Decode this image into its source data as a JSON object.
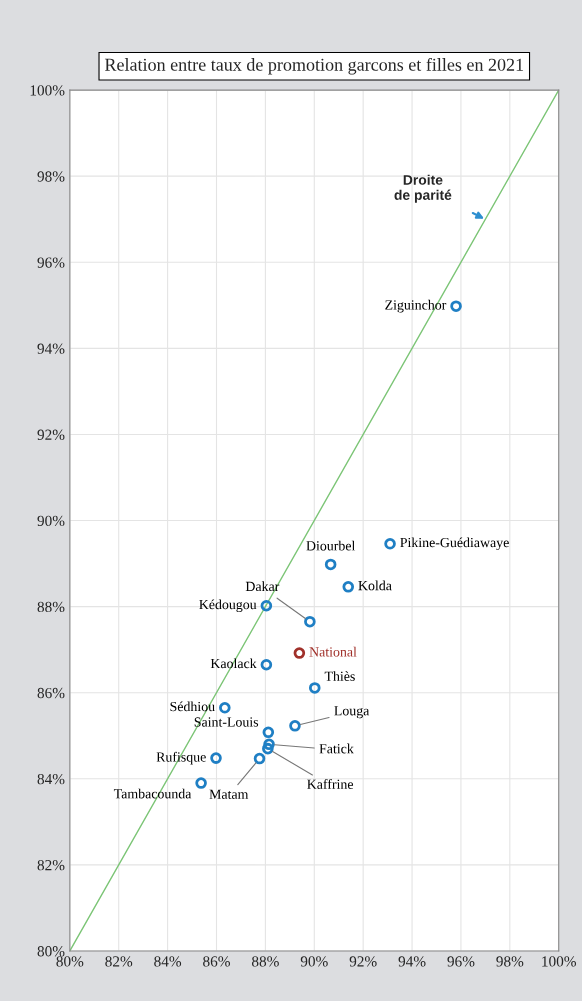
{
  "chart_data": {
    "type": "scatter",
    "title": "Relation entre taux de promotion garcons et filles en 2021",
    "series": [
      {
        "type": "line",
        "color": "#7cc576",
        "x": [
          80,
          100
        ],
        "values": [
          80,
          100
        ],
        "marker": "none"
      },
      {
        "color": "#1f7fc4",
        "marker": "circle",
        "x": [
          95.8,
          93.1,
          91.39,
          90.67,
          89.82,
          90.02,
          89.21,
          88.15,
          88.1,
          88.12,
          88.04,
          88.04,
          87.76,
          86.34,
          85.98,
          85.37
        ],
        "values": [
          94.98,
          89.46,
          88.46,
          88.98,
          87.65,
          86.11,
          85.23,
          84.8,
          84.7,
          85.08,
          88.02,
          86.65,
          84.47,
          85.65,
          84.48,
          83.9
        ]
      },
      {
        "color": "#a0302a",
        "marker": "circle",
        "x": [
          89.39
        ],
        "values": [
          86.92
        ]
      }
    ],
    "annotations": [
      {
        "text": "Ziguinchor",
        "x": 95.8,
        "y": 94.98
      },
      {
        "text": "Pikine-Guédiawaye",
        "x": 93.1,
        "y": 89.46
      },
      {
        "text": "Kolda",
        "x": 91.39,
        "y": 88.46
      },
      {
        "text": "Diourbel",
        "x": 90.67,
        "y": 88.98
      },
      {
        "text": "Dakar",
        "x": 89.82,
        "y": 87.65
      },
      {
        "text": "Thiès",
        "x": 90.02,
        "y": 86.11
      },
      {
        "text": "Louga",
        "x": 89.21,
        "y": 85.23
      },
      {
        "text": "Fatick",
        "x": 88.15,
        "y": 84.8
      },
      {
        "text": "Kaffrine",
        "x": 88.1,
        "y": 84.7
      },
      {
        "text": "Saint-Louis",
        "x": 88.12,
        "y": 85.08
      },
      {
        "text": "Kédougou",
        "x": 88.04,
        "y": 88.02
      },
      {
        "text": "Kaolack",
        "x": 88.04,
        "y": 86.65
      },
      {
        "text": "Matam",
        "x": 87.76,
        "y": 84.47
      },
      {
        "text": "Sédhiou",
        "x": 86.34,
        "y": 85.65
      },
      {
        "text": "Rufisque",
        "x": 85.98,
        "y": 84.48
      },
      {
        "text": "Tambacounda",
        "x": 85.37,
        "y": 83.9
      },
      {
        "text": "National",
        "x": 89.39,
        "y": 86.92
      },
      {
        "text": "Droite\nde parité",
        "x": 97,
        "y": 97
      }
    ],
    "xlim": [
      80,
      100
    ],
    "ylim": [
      80,
      100
    ],
    "xticks": [
      {
        "value": 80,
        "label": "80%"
      },
      {
        "value": 82,
        "label": "82%"
      },
      {
        "value": 84,
        "label": "84%"
      },
      {
        "value": 86,
        "label": "86%"
      },
      {
        "value": 88,
        "label": "88%"
      },
      {
        "value": 90,
        "label": "90%"
      },
      {
        "value": 92,
        "label": "92%"
      },
      {
        "value": 94,
        "label": "94%"
      },
      {
        "value": 96,
        "label": "96%"
      },
      {
        "value": 98,
        "label": "98%"
      },
      {
        "value": 100,
        "label": "100%"
      }
    ],
    "yticks": [
      {
        "value": 80,
        "label": "80%"
      },
      {
        "value": 82,
        "label": "82%"
      },
      {
        "value": 84,
        "label": "84%"
      },
      {
        "value": 86,
        "label": "86%"
      },
      {
        "value": 88,
        "label": "88%"
      },
      {
        "value": 90,
        "label": "90%"
      },
      {
        "value": 92,
        "label": "92%"
      },
      {
        "value": 94,
        "label": "94%"
      },
      {
        "value": 96,
        "label": "96%"
      },
      {
        "value": 98,
        "label": "98%"
      },
      {
        "value": 100,
        "label": "100%"
      }
    ],
    "grid": true,
    "legend": false
  }
}
